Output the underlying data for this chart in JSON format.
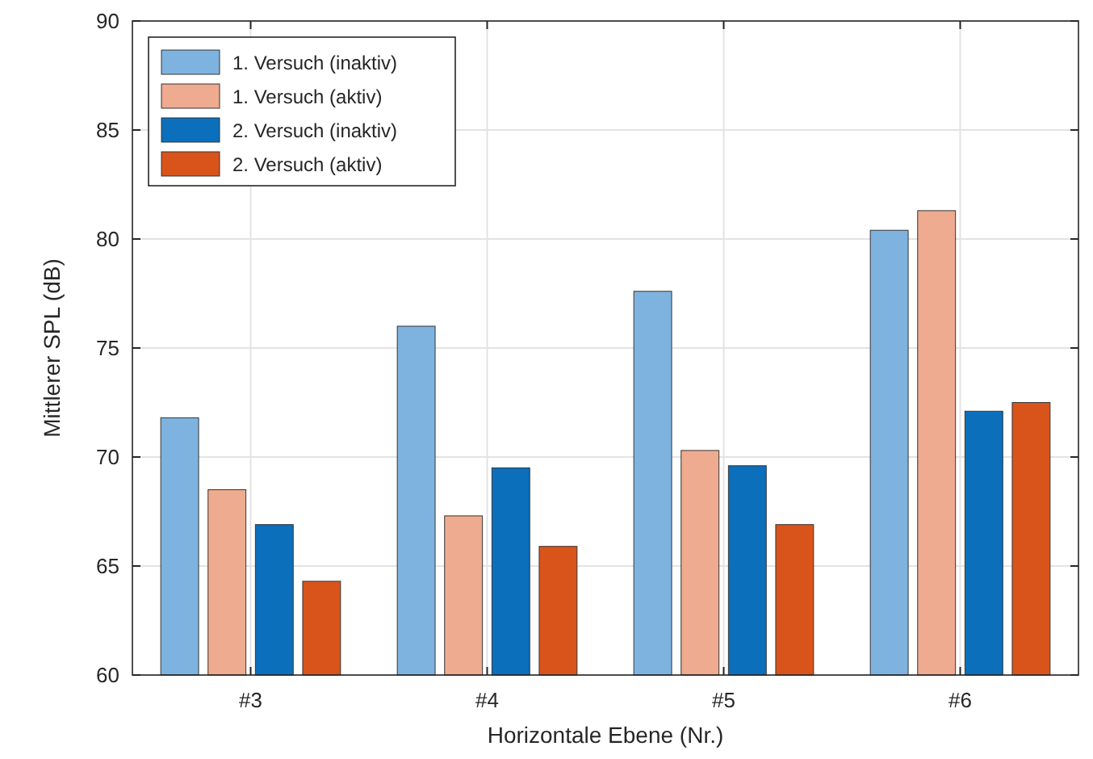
{
  "chart_data": {
    "type": "bar",
    "xlabel": "Horizontale Ebene (Nr.)",
    "ylabel": "Mittlerer SPL (dB)",
    "categories": [
      "#3",
      "#4",
      "#5",
      "#6"
    ],
    "series": [
      {
        "name": "1. Versuch (inaktiv)",
        "color": "#7fb3df",
        "values": [
          71.8,
          76.0,
          77.6,
          80.4
        ]
      },
      {
        "name": "1. Versuch (aktiv)",
        "color": "#eeab8f",
        "values": [
          68.5,
          67.3,
          70.3,
          81.3
        ]
      },
      {
        "name": "2. Versuch (inaktiv)",
        "color": "#0b6fbc",
        "values": [
          66.9,
          69.5,
          69.6,
          72.1
        ]
      },
      {
        "name": "2. Versuch (aktiv)",
        "color": "#d9541b",
        "values": [
          64.3,
          65.9,
          66.9,
          72.5
        ]
      }
    ],
    "ylim": [
      60,
      90
    ],
    "yticks": [
      60,
      65,
      70,
      75,
      80,
      85,
      90
    ],
    "grid": true,
    "legend": "top left"
  }
}
